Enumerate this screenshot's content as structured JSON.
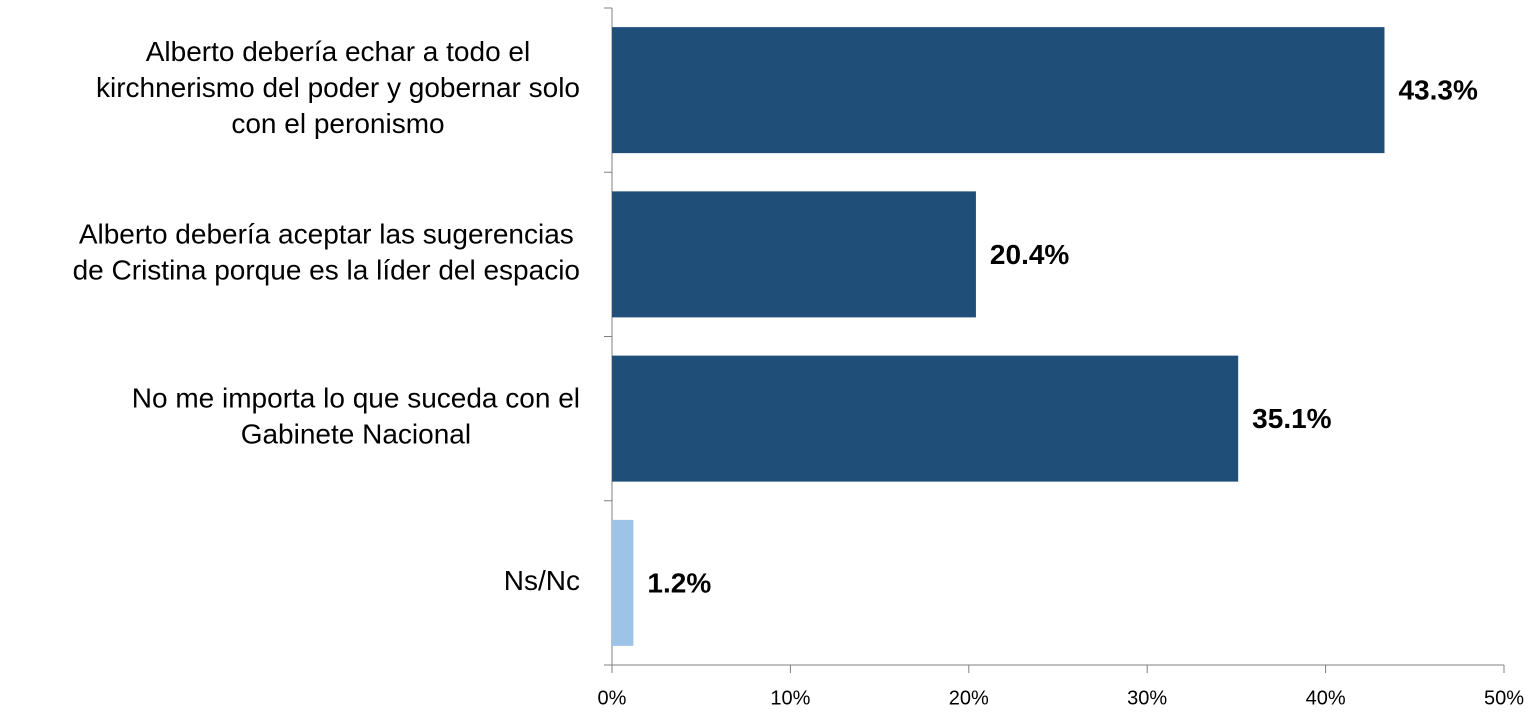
{
  "chart_data": {
    "type": "hbar",
    "categories": [
      "Alberto debería echar a todo el\nkirchnerismo del poder y gobernar solo\ncon el peronismo",
      "Alberto debería aceptar las sugerencias\nde Cristina porque es la líder del espacio",
      "No me importa lo que suceda con el\nGabinete Nacional",
      "Ns/Nc"
    ],
    "values": [
      43.3,
      20.4,
      35.1,
      1.2
    ],
    "value_labels": [
      "43.3%",
      "20.4%",
      "35.1%",
      "1.2%"
    ],
    "colors": [
      "#1f4e79",
      "#1f4e79",
      "#1f4e79",
      "#9dc3e6"
    ],
    "xlim": [
      0,
      50
    ],
    "xticks": [
      {
        "value": 0,
        "label": "0%"
      },
      {
        "value": 10,
        "label": "10%"
      },
      {
        "value": 20,
        "label": "20%"
      },
      {
        "value": 30,
        "label": "30%"
      },
      {
        "value": 40,
        "label": "40%"
      },
      {
        "value": 50,
        "label": "50%"
      }
    ]
  }
}
